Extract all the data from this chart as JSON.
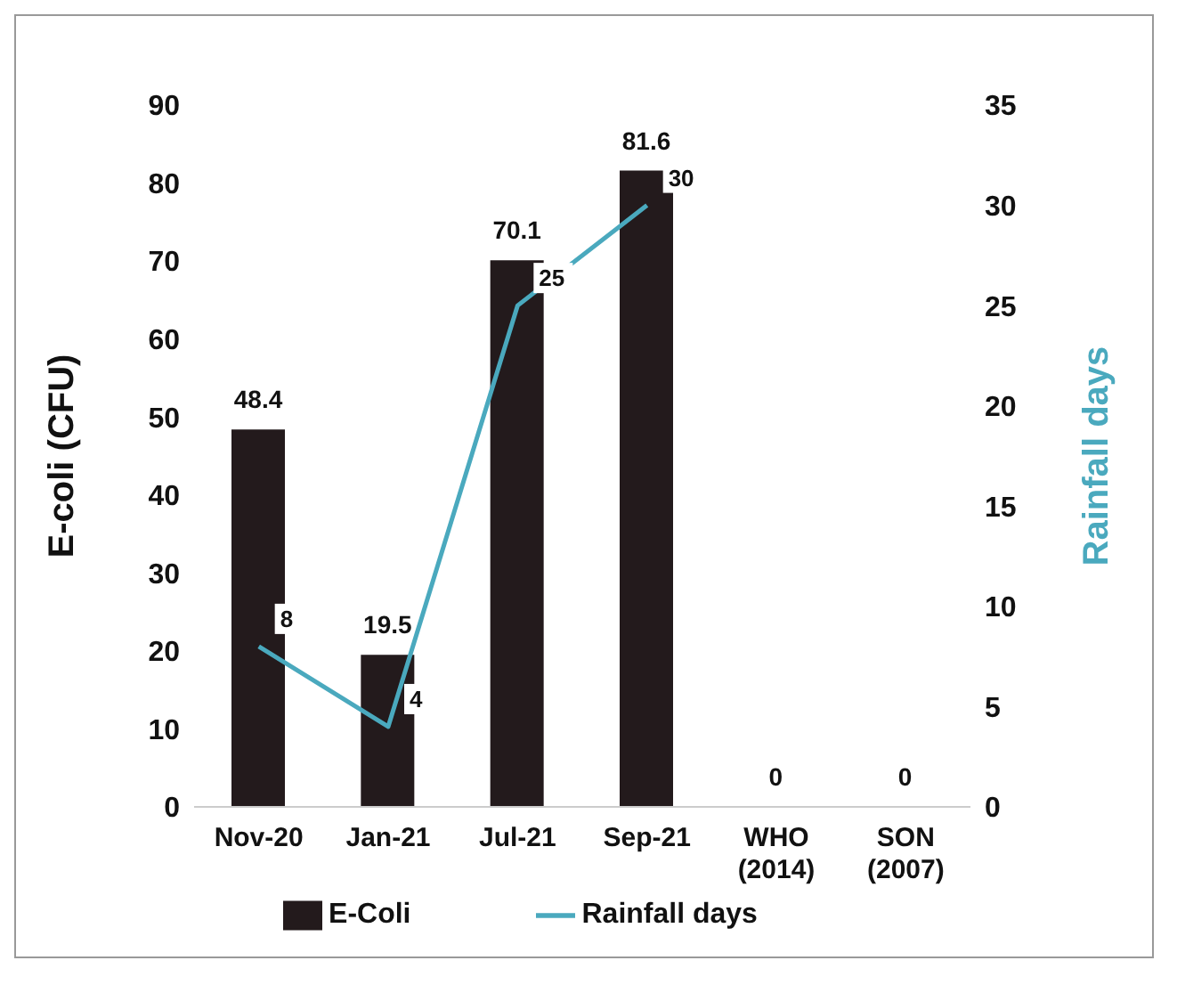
{
  "chart_data": {
    "type": "bar",
    "categories": [
      "Nov-20",
      "Jan-21",
      "Jul-21",
      "Sep-21",
      "WHO (2014)",
      "SON (2007)"
    ],
    "series": [
      {
        "name": "E-Coli",
        "color": "#231a1c",
        "values": [
          48.4,
          19.5,
          70.1,
          81.6,
          0,
          0
        ]
      },
      {
        "name": "Rainfall days",
        "type": "line",
        "axis": "y2",
        "color": "#4aa9be",
        "values": [
          8,
          4,
          25,
          30,
          null,
          null
        ]
      }
    ],
    "ylabel": "E-coli (CFU)",
    "y2label": "Rainfall days",
    "ylim": [
      0,
      90
    ],
    "yticks": [
      0,
      10,
      20,
      30,
      40,
      50,
      60,
      70,
      80,
      90
    ],
    "y2lim": [
      0,
      35
    ],
    "y2ticks": [
      0,
      5,
      10,
      15,
      20,
      25,
      30,
      35
    ],
    "data_labels": true,
    "grid": false,
    "legend": "bottom",
    "marker": "none"
  }
}
